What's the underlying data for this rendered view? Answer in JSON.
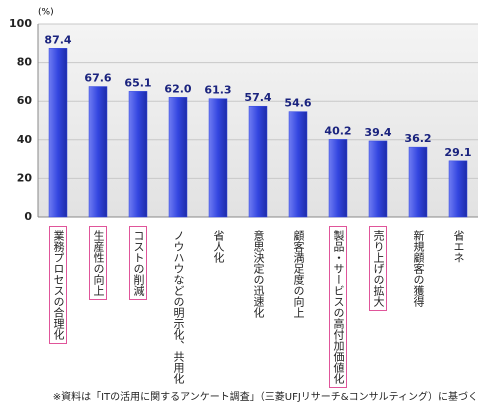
{
  "chart_data": {
    "type": "bar",
    "y_unit": "(%)",
    "categories": [
      "業務プロセスの合理化",
      "生産性の向上",
      "コストの削減",
      "ノウハウなどの明示化、共用化",
      "省人化",
      "意思決定の迅速化",
      "顧客満足度の向上",
      "製品・サービスの高付加価値化",
      "売り上げの拡大",
      "新規顧客の獲得",
      "省エネ"
    ],
    "values": [
      87.4,
      67.6,
      65.1,
      62.0,
      61.3,
      57.4,
      54.6,
      40.2,
      39.4,
      36.2,
      29.1
    ],
    "value_labels": [
      "87.4",
      "67.6",
      "65.1",
      "62.0",
      "61.3",
      "57.4",
      "54.6",
      "40.2",
      "39.4",
      "36.2",
      "29.1"
    ],
    "highlighted": [
      true,
      true,
      true,
      false,
      false,
      false,
      false,
      true,
      true,
      false,
      false
    ],
    "highlight_color": "#e0559a",
    "color": "#3346e0",
    "ylim": [
      0,
      100
    ],
    "yticks": [
      0,
      20,
      40,
      60,
      80,
      100
    ],
    "grid": true,
    "note": "※資料は「ITの活用に関するアンケート調査」（三菱UFJリサーチ&コンサルティング）に基づく"
  }
}
